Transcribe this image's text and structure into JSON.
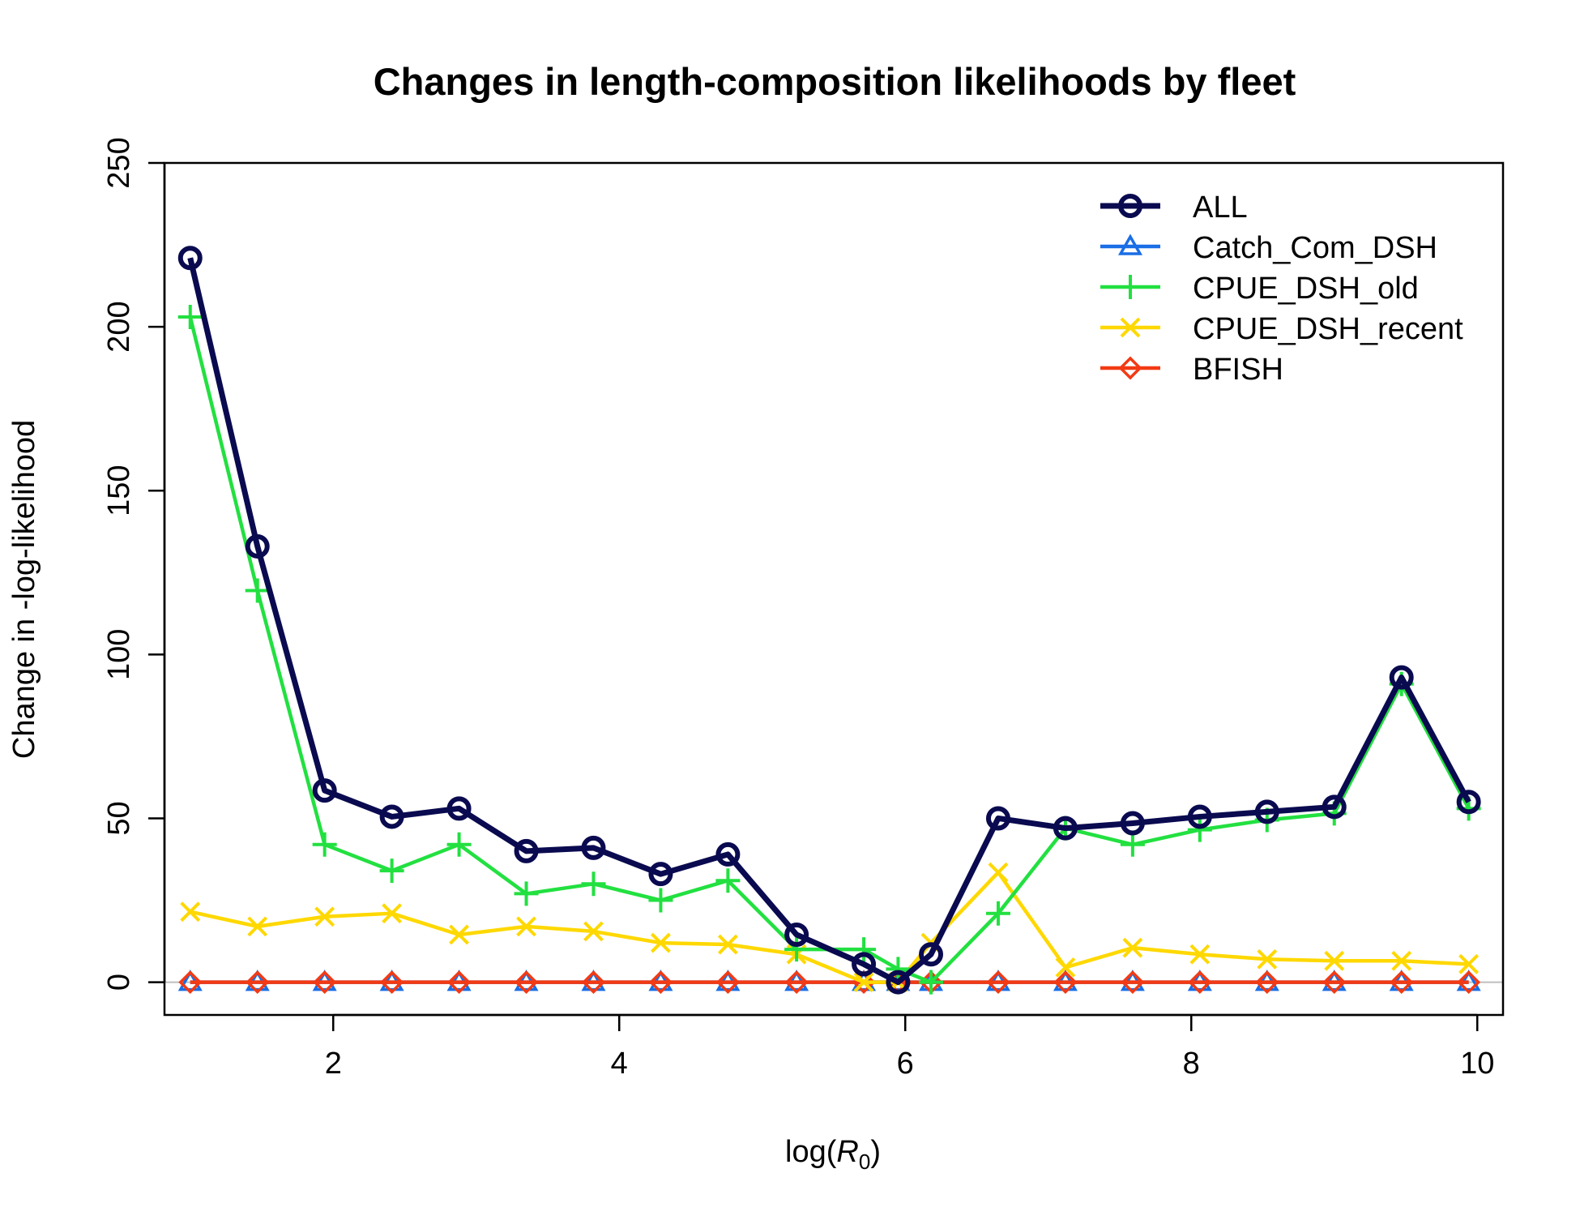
{
  "chart_data": {
    "type": "line",
    "title": "Changes in length-composition likelihoods by fleet",
    "xlabel": "log(R0)",
    "xlabel_prefix": "log(",
    "xlabel_var": "R",
    "xlabel_sub": "0",
    "xlabel_suffix": ")",
    "ylabel": "Change in -log-likelihood",
    "xlim": [
      0.82,
      10.18
    ],
    "ylim": [
      -10,
      250
    ],
    "xticks": [
      2,
      4,
      6,
      8,
      10
    ],
    "yticks": [
      0,
      50,
      100,
      150,
      200,
      250
    ],
    "zero_line": true,
    "grid": false,
    "legend_position": "top-right",
    "x": [
      1.0,
      1.47,
      1.94,
      2.41,
      2.88,
      3.35,
      3.82,
      4.29,
      4.76,
      5.24,
      5.71,
      5.95,
      6.18,
      6.65,
      7.12,
      7.59,
      8.06,
      8.53,
      9.0,
      9.47,
      9.94
    ],
    "series": [
      {
        "name": "ALL",
        "color": "#0a0a50",
        "marker": "circle",
        "values": [
          221,
          133,
          58.5,
          50.5,
          53,
          40,
          41,
          33,
          39,
          14.5,
          5.5,
          0,
          8.5,
          50,
          47,
          48.5,
          50.5,
          52,
          53.5,
          93,
          55
        ]
      },
      {
        "name": "Catch_Com_DSH",
        "color": "#1a6ee6",
        "marker": "triangle",
        "values": [
          0,
          0,
          0,
          0,
          0,
          0,
          0,
          0,
          0,
          0,
          0,
          0,
          0,
          0,
          0,
          0,
          0,
          0,
          0,
          0,
          0
        ]
      },
      {
        "name": "CPUE_DSH_old",
        "color": "#22e040",
        "marker": "plus",
        "values": [
          203,
          119.5,
          42,
          34,
          42,
          27,
          30,
          25,
          31,
          10,
          10,
          4,
          0,
          21,
          47,
          42,
          46.5,
          49.5,
          51.5,
          91,
          53
        ]
      },
      {
        "name": "CPUE_DSH_recent",
        "color": "#ffd800",
        "marker": "cross",
        "values": [
          21.5,
          17,
          20,
          21,
          14.5,
          17,
          15.5,
          12,
          11.5,
          8.5,
          0,
          0,
          12,
          33.5,
          4.5,
          10.5,
          8.5,
          7,
          6.5,
          6.5,
          5.5
        ]
      },
      {
        "name": "BFISH",
        "color": "#f23a14",
        "marker": "diamond",
        "values": [
          0,
          0,
          0,
          0,
          0,
          0,
          0,
          0,
          0,
          0,
          0,
          0,
          0,
          0,
          0,
          0,
          0,
          0,
          0,
          0,
          0
        ]
      }
    ]
  }
}
